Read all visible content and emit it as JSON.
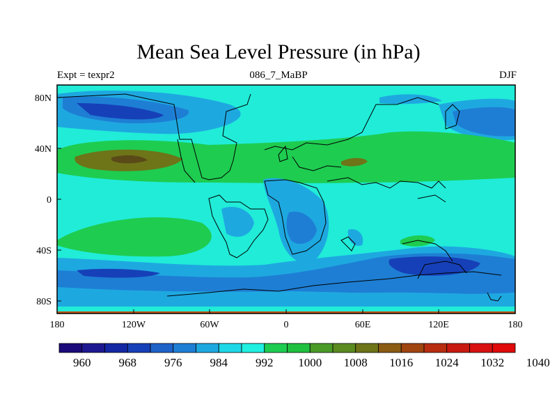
{
  "map": {
    "title": "Mean Sea Level Pressure (in hPa)",
    "left_string": "Expt = texpr2",
    "center_string": "086_7_MaBP",
    "right_string": "DJF",
    "lon_labels": [
      "180",
      "120W",
      "60W",
      "0",
      "60E",
      "120E",
      "180"
    ],
    "lat_labels": [
      "80N",
      "40N",
      "0",
      "40S",
      "80S"
    ],
    "colorbar": {
      "labels": [
        "960",
        "968",
        "976",
        "984",
        "992",
        "1000",
        "1008",
        "1016",
        "1024",
        "1032",
        "1040"
      ],
      "colors": [
        "#1a0a7a",
        "#1e1890",
        "#1428a4",
        "#1640b8",
        "#1e62c8",
        "#1e7ed4",
        "#1ea8e0",
        "#1ed8e8",
        "#20f0e0",
        "#1ecc50",
        "#20c040",
        "#4a9a28",
        "#5a8a20",
        "#6e7418",
        "#8a5c14",
        "#a04410",
        "#b82c10",
        "#c81a10",
        "#d81010",
        "#e00a0a"
      ]
    },
    "contour_levels": {
      "ocean_background": "#20ecd8",
      "band_1000": "#1ed8e8",
      "band_992": "#1ea8e0",
      "band_984": "#1e7ed4",
      "band_976": "#1640b8",
      "band_1008": "#1ecc50",
      "band_1016": "#6e7418"
    }
  }
}
